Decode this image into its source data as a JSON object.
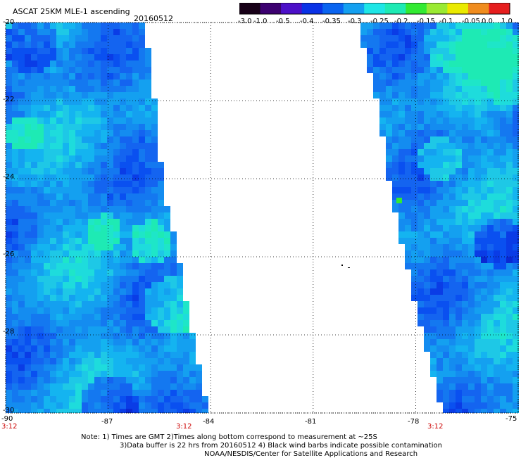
{
  "header": {
    "title": "ASCAT 25KM MLE-1 ascending",
    "date": "20160512"
  },
  "colorbar": {
    "labels": [
      "-3.0",
      "-1.0",
      "-0.5",
      "-0.4",
      "-0.35",
      "-0.3",
      "-0.25",
      "-0.2",
      "-0.15",
      "-0.1",
      "-0.05",
      "0.0",
      "1.0"
    ],
    "colors": [
      "#180018",
      "#3c0070",
      "#4c10c8",
      "#0a32e6",
      "#0a64f0",
      "#14a0f0",
      "#1ee6e6",
      "#1eeab4",
      "#32ea32",
      "#9aea32",
      "#eaea00",
      "#f08c1e",
      "#e61e1e"
    ]
  },
  "axes": {
    "lat_labels": [
      "-20",
      "-22",
      "-24",
      "-26",
      "-28",
      "-30"
    ],
    "lon_labels": [
      "-90",
      "-87",
      "-84",
      "-81",
      "-78",
      "-75"
    ],
    "time_labels": [
      "3:12",
      "3:12",
      "3:12"
    ]
  },
  "notes": {
    "line1": "Note: 1) Times are GMT 2)Times along bottom correspond to measurement at ~25S",
    "line2": "3)Data buffer is 22 hrs from 20160512 4) Black wind barbs indicate possible contamination",
    "line3": "NOAA/NESDIS/Center for Satellite Applications and Research"
  },
  "map": {
    "lat_range": [
      -30,
      -20
    ],
    "lon_range": [
      -90,
      -75
    ],
    "grid": true,
    "grid_style": "dotted",
    "swaths": [
      {
        "name": "western swath",
        "east_edge_lon": [
          [
            -20,
            -85.9
          ],
          [
            -22,
            -85.6
          ],
          [
            -24,
            -85.4
          ],
          [
            -26,
            -84.9
          ],
          [
            -28,
            -84.5
          ],
          [
            -30,
            -84.0
          ]
        ]
      },
      {
        "name": "eastern swath",
        "west_edge_lon": [
          [
            -20,
            -79.7
          ],
          [
            -22,
            -79.1
          ],
          [
            -24,
            -78.8
          ],
          [
            -26,
            -78.3
          ],
          [
            -28,
            -77.8
          ],
          [
            -30,
            -77.2
          ]
        ]
      }
    ]
  }
}
